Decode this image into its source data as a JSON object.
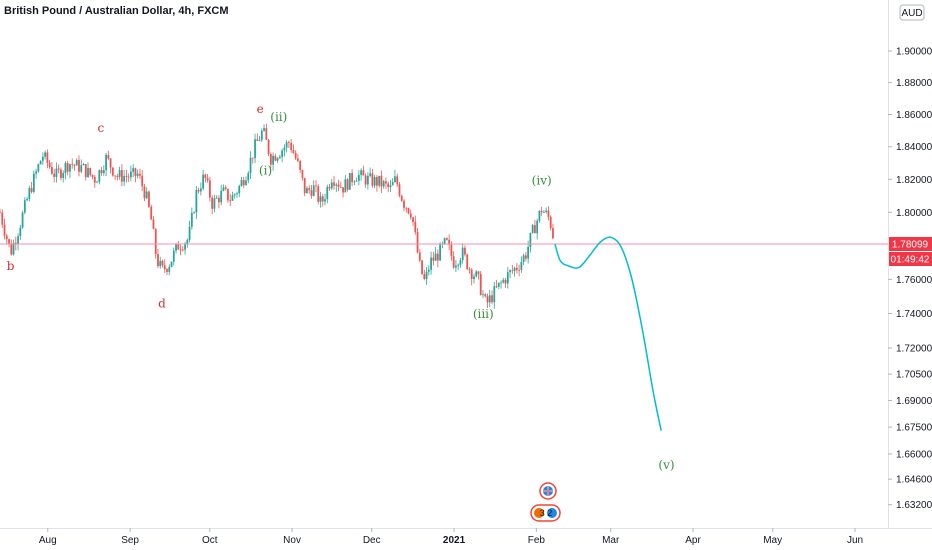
{
  "header": {
    "symbol": "British Pound / Australian Dollar, 4h, FXCM",
    "currency": "AUD"
  },
  "colors": {
    "up": "#26a69a",
    "down": "#ef5350",
    "forecast": "#00bcd4",
    "price_line": "#f48fb1",
    "price_badge": "#f23645",
    "wave_red": "#d32f2f",
    "wave_green": "#388e3c"
  },
  "chart_data": {
    "type": "candlestick",
    "title": "British Pound / Australian Dollar, 4h, FXCM",
    "y_scale": "log",
    "ylim": [
      1.628,
      1.925
    ],
    "y_ticks": [
      "1.90000",
      "1.88000",
      "1.86000",
      "1.84000",
      "1.82000",
      "1.80000",
      "1.76000",
      "1.74000",
      "1.72000",
      "1.70500",
      "1.69000",
      "1.67500",
      "1.66000",
      "1.64600",
      "1.63200"
    ],
    "x_ticks": [
      {
        "label": "Aug",
        "date": "2020-08-01"
      },
      {
        "label": "Sep",
        "date": "2020-09-01"
      },
      {
        "label": "Oct",
        "date": "2020-10-01"
      },
      {
        "label": "Nov",
        "date": "2020-11-01"
      },
      {
        "label": "Dec",
        "date": "2020-12-01"
      },
      {
        "label": "2021",
        "date": "2021-01-01",
        "bold": true
      },
      {
        "label": "Feb",
        "date": "2021-02-01"
      },
      {
        "label": "Mar",
        "date": "2021-03-01"
      },
      {
        "label": "Apr",
        "date": "2021-04-01"
      },
      {
        "label": "May",
        "date": "2021-05-01"
      },
      {
        "label": "Jun",
        "date": "2021-06-01"
      }
    ],
    "price_path": [
      [
        "2020-07-14",
        1.8
      ],
      [
        "2020-07-18",
        1.776
      ],
      [
        "2020-07-21",
        1.79
      ],
      [
        "2020-07-25",
        1.812
      ],
      [
        "2020-07-30",
        1.835
      ],
      [
        "2020-08-04",
        1.822
      ],
      [
        "2020-08-09",
        1.83
      ],
      [
        "2020-08-14",
        1.827
      ],
      [
        "2020-08-19",
        1.82
      ],
      [
        "2020-08-23",
        1.833
      ],
      [
        "2020-08-27",
        1.822
      ],
      [
        "2020-09-01",
        1.822
      ],
      [
        "2020-09-04",
        1.823
      ],
      [
        "2020-09-07",
        1.81
      ],
      [
        "2020-09-09",
        1.795
      ],
      [
        "2020-09-11",
        1.772
      ],
      [
        "2020-09-13",
        1.765
      ],
      [
        "2020-09-16",
        1.77
      ],
      [
        "2020-09-19",
        1.78
      ],
      [
        "2020-09-23",
        1.784
      ],
      [
        "2020-09-26",
        1.812
      ],
      [
        "2020-09-29",
        1.822
      ],
      [
        "2020-10-02",
        1.805
      ],
      [
        "2020-10-06",
        1.812
      ],
      [
        "2020-10-09",
        1.808
      ],
      [
        "2020-10-12",
        1.815
      ],
      [
        "2020-10-15",
        1.825
      ],
      [
        "2020-10-18",
        1.84
      ],
      [
        "2020-10-21",
        1.85
      ],
      [
        "2020-10-24",
        1.833
      ],
      [
        "2020-10-28",
        1.838
      ],
      [
        "2020-10-31",
        1.843
      ],
      [
        "2020-11-03",
        1.83
      ],
      [
        "2020-11-06",
        1.812
      ],
      [
        "2020-11-09",
        1.815
      ],
      [
        "2020-11-12",
        1.805
      ],
      [
        "2020-11-16",
        1.822
      ],
      [
        "2020-11-20",
        1.815
      ],
      [
        "2020-11-25",
        1.823
      ],
      [
        "2020-11-29",
        1.82
      ],
      [
        "2020-12-04",
        1.818
      ],
      [
        "2020-12-08",
        1.814
      ],
      [
        "2020-12-10",
        1.82
      ],
      [
        "2020-12-13",
        1.806
      ],
      [
        "2020-12-16",
        1.8
      ],
      [
        "2020-12-19",
        1.768
      ],
      [
        "2020-12-21",
        1.758
      ],
      [
        "2020-12-23",
        1.77
      ],
      [
        "2020-12-26",
        1.775
      ],
      [
        "2020-12-29",
        1.782
      ],
      [
        "2021-01-01",
        1.77
      ],
      [
        "2021-01-04",
        1.776
      ],
      [
        "2021-01-07",
        1.766
      ],
      [
        "2021-01-10",
        1.76
      ],
      [
        "2021-01-13",
        1.745
      ],
      [
        "2021-01-17",
        1.754
      ],
      [
        "2021-01-21",
        1.762
      ],
      [
        "2021-01-25",
        1.768
      ],
      [
        "2021-01-28",
        1.775
      ],
      [
        "2021-01-31",
        1.79
      ],
      [
        "2021-02-03",
        1.802
      ],
      [
        "2021-02-06",
        1.796
      ],
      [
        "2021-02-08",
        1.781
      ]
    ],
    "forecast": [
      [
        "2021-02-08",
        1.781
      ],
      [
        "2021-02-10",
        1.771
      ],
      [
        "2021-02-13",
        1.768
      ],
      [
        "2021-02-17",
        1.767
      ],
      [
        "2021-02-21",
        1.774
      ],
      [
        "2021-02-25",
        1.782
      ],
      [
        "2021-03-01",
        1.785
      ],
      [
        "2021-03-05",
        1.779
      ],
      [
        "2021-03-09",
        1.76
      ],
      [
        "2021-03-13",
        1.73
      ],
      [
        "2021-03-17",
        1.695
      ],
      [
        "2021-03-20",
        1.673
      ]
    ],
    "waves": [
      {
        "label": "b",
        "date": "2020-07-18",
        "price": 1.7655,
        "color": "red"
      },
      {
        "label": "c",
        "date": "2020-08-21",
        "price": 1.849,
        "color": "red"
      },
      {
        "label": "d",
        "date": "2020-09-13",
        "price": 1.7435,
        "color": "red"
      },
      {
        "label": "e",
        "date": "2020-10-20",
        "price": 1.861,
        "color": "red"
      },
      {
        "label": "(ii)",
        "date": "2020-10-27",
        "price": 1.856,
        "color": "green"
      },
      {
        "label": "(i)",
        "date": "2020-10-22",
        "price": 1.823,
        "color": "green"
      },
      {
        "label": "(iii)",
        "date": "2021-01-12",
        "price": 1.7375,
        "color": "green"
      },
      {
        "label": "(iv)",
        "date": "2021-02-03",
        "price": 1.817,
        "color": "green"
      },
      {
        "label": "(v)",
        "date": "2021-03-22",
        "price": 1.6515,
        "color": "green"
      }
    ],
    "last_price": "1.78099",
    "timer": "01:49:42",
    "last_value": 1.78099
  }
}
